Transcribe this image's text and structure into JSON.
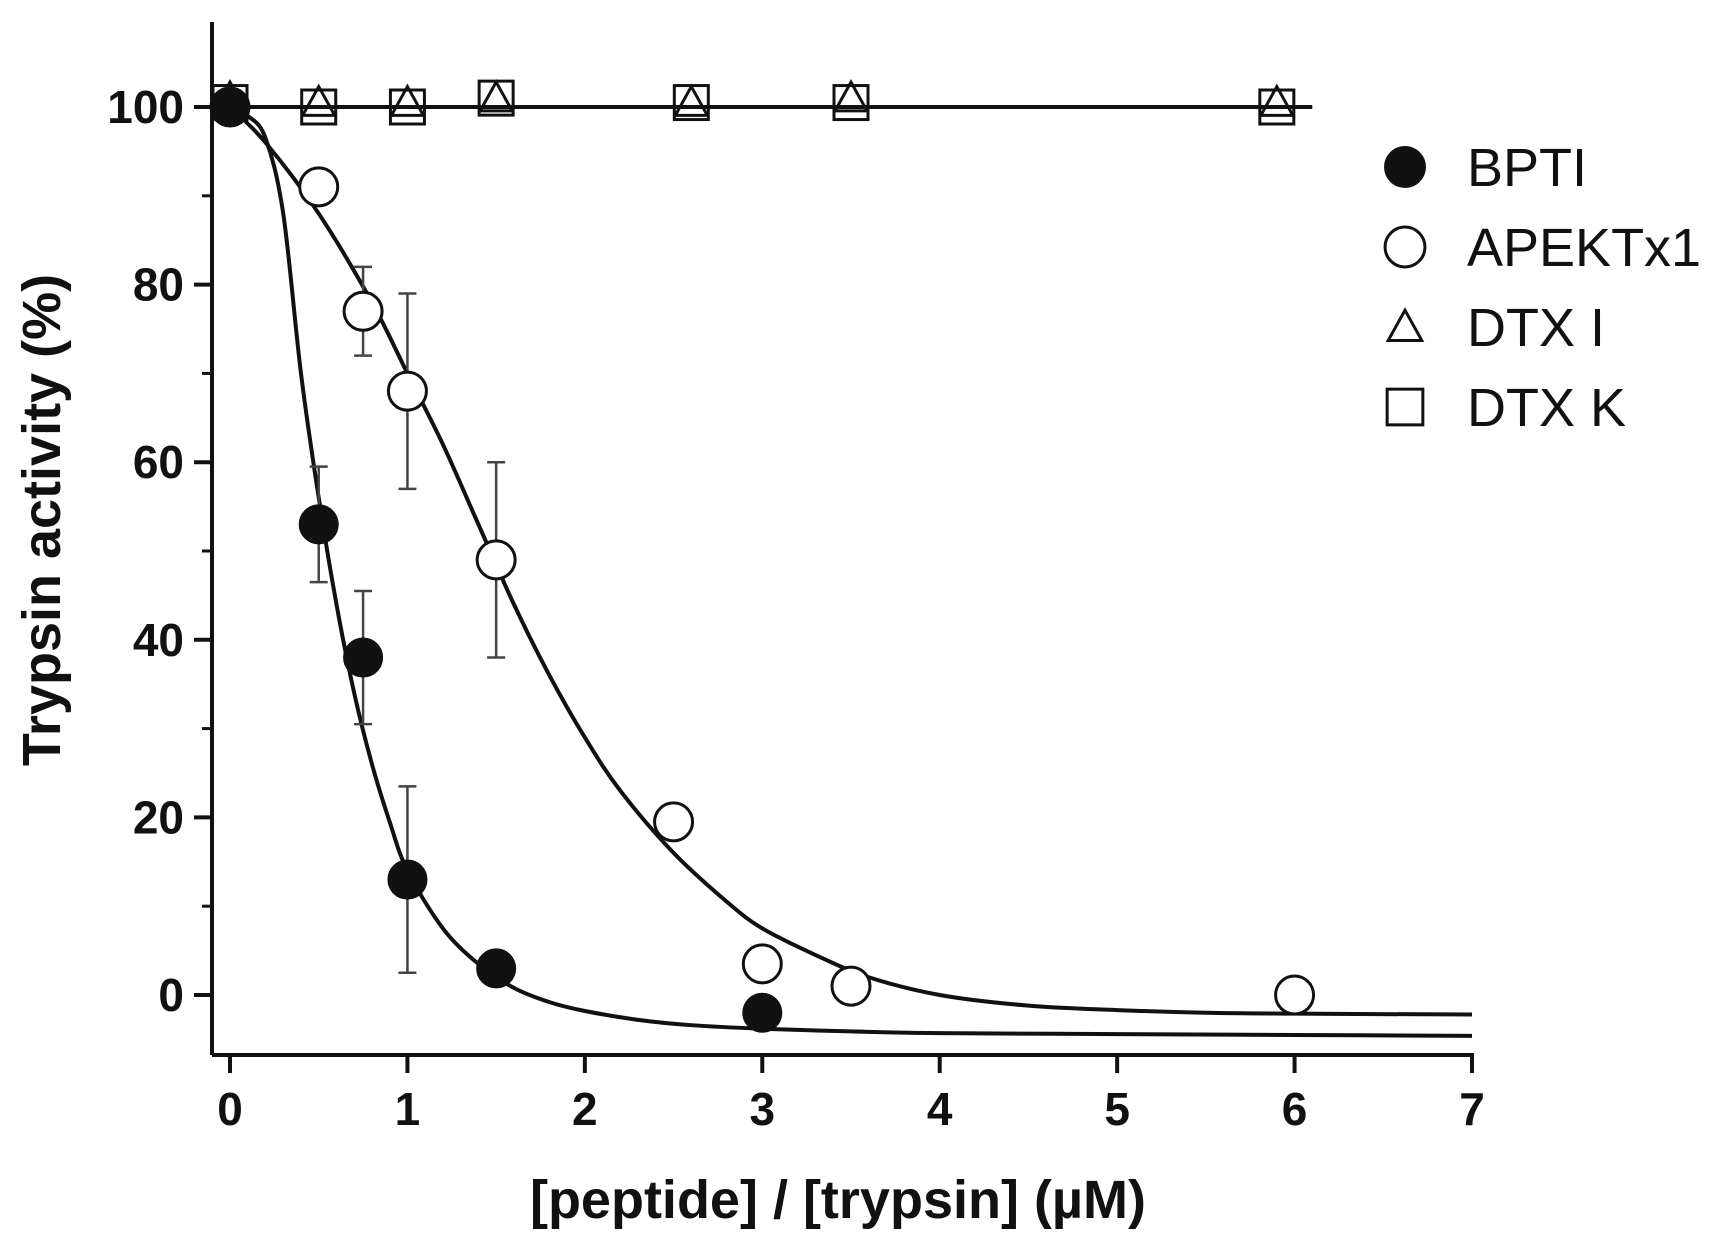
{
  "chart_data": {
    "type": "scatter",
    "xlabel": "[peptide] / [trypsin] (µM)",
    "ylabel": "Trypsin activity (%)",
    "xlim": [
      0,
      7
    ],
    "ylim": [
      -7,
      110
    ],
    "xticks": [
      "0",
      "1",
      "2",
      "3",
      "4",
      "5",
      "6",
      "7"
    ],
    "yticks": [
      "0",
      "20",
      "40",
      "60",
      "80",
      "100"
    ],
    "grid": false,
    "legend_position": "right",
    "series": [
      {
        "name": "BPTI",
        "marker": "filled-circle",
        "x": [
          0,
          0.5,
          0.75,
          1.0,
          1.5,
          3.0
        ],
        "y": [
          100,
          53,
          38,
          13,
          3,
          -2
        ],
        "error": [
          0,
          6.5,
          7.5,
          10.5,
          0,
          0
        ],
        "fit": [
          [
            0,
            100
          ],
          [
            0.1,
            99
          ],
          [
            0.2,
            96.5
          ],
          [
            0.3,
            88
          ],
          [
            0.4,
            70
          ],
          [
            0.5,
            56
          ],
          [
            0.6,
            44
          ],
          [
            0.7,
            34
          ],
          [
            0.8,
            26
          ],
          [
            0.9,
            19.5
          ],
          [
            1.0,
            14
          ],
          [
            1.2,
            7.5
          ],
          [
            1.4,
            3.5
          ],
          [
            1.6,
            0.8
          ],
          [
            1.8,
            -0.8
          ],
          [
            2.0,
            -1.8
          ],
          [
            2.3,
            -2.8
          ],
          [
            2.6,
            -3.4
          ],
          [
            3.0,
            -3.8
          ],
          [
            3.5,
            -4.1
          ],
          [
            4.0,
            -4.3
          ],
          [
            5.0,
            -4.4
          ],
          [
            6.0,
            -4.5
          ],
          [
            7.0,
            -4.6
          ]
        ]
      },
      {
        "name": "APEKTx1",
        "marker": "open-circle",
        "x": [
          0,
          0.5,
          0.75,
          1.0,
          1.5,
          2.5,
          3.0,
          3.5,
          6.0
        ],
        "y": [
          100,
          91,
          77,
          68,
          49,
          19.5,
          3.5,
          1,
          0
        ],
        "error": [
          0,
          0,
          5,
          11,
          11,
          0,
          1.5,
          0,
          0
        ],
        "fit": [
          [
            0,
            100
          ],
          [
            0.2,
            96
          ],
          [
            0.5,
            88
          ],
          [
            0.8,
            78
          ],
          [
            1.0,
            70
          ],
          [
            1.2,
            62
          ],
          [
            1.4,
            53
          ],
          [
            1.6,
            44
          ],
          [
            1.8,
            36
          ],
          [
            2.0,
            29
          ],
          [
            2.2,
            23
          ],
          [
            2.5,
            16
          ],
          [
            2.8,
            10.5
          ],
          [
            3.0,
            7.5
          ],
          [
            3.3,
            4.5
          ],
          [
            3.6,
            2
          ],
          [
            4.0,
            0
          ],
          [
            4.5,
            -1.2
          ],
          [
            5.0,
            -1.7
          ],
          [
            5.5,
            -2
          ],
          [
            6.0,
            -2.1
          ],
          [
            7.0,
            -2.2
          ]
        ]
      },
      {
        "name": "DTX I",
        "marker": "open-triangle",
        "x": [
          0,
          0.5,
          1.0,
          1.5,
          2.6,
          3.5,
          5.9
        ],
        "y": [
          101,
          100.5,
          100.5,
          101,
          100.5,
          101,
          100.5
        ]
      },
      {
        "name": "DTX K",
        "marker": "open-square",
        "x": [
          0,
          0.5,
          1.0,
          1.5,
          2.6,
          3.5,
          5.9
        ],
        "y": [
          100.5,
          100,
          100,
          101,
          100.5,
          100.5,
          100
        ],
        "fit": [
          [
            0,
            100
          ],
          [
            6.1,
            100
          ]
        ]
      }
    ]
  }
}
